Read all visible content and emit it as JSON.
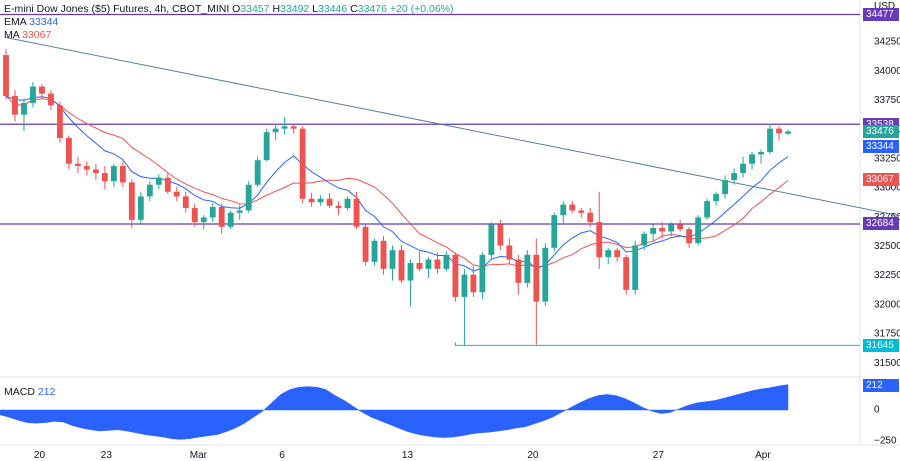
{
  "header": {
    "title": "E-mini Dow Jones ($5) Futures, 4h, CBOT_MINI",
    "o_label": "O",
    "o_value": "33457",
    "h_label": "H",
    "h_value": "33492",
    "l_label": "L",
    "l_value": "33446",
    "c_label": "C",
    "c_value": "33476",
    "change": "+20 (+0.06%)",
    "ema_label": "EMA",
    "ema_value": "33344",
    "ma_label": "MA",
    "ma_value": "33067"
  },
  "price_axis": {
    "currency": "USD",
    "ticks": [
      "34250",
      "34000",
      "33750",
      "33500",
      "33250",
      "33000",
      "32750",
      "32500",
      "32250",
      "32000",
      "31750",
      "31500"
    ]
  },
  "badges": [
    {
      "label": "34477",
      "value": 34477,
      "color": "#673ab7"
    },
    {
      "label": "33538",
      "value": 33538,
      "color": "#673ab7"
    },
    {
      "label": "33476",
      "value": 33476,
      "color": "#26a69a"
    },
    {
      "label": "33344",
      "value": 33344,
      "color": "#2962ff"
    },
    {
      "label": "33067",
      "value": 33067,
      "color": "#ef5350"
    },
    {
      "label": "32684",
      "value": 32684,
      "color": "#673ab7"
    },
    {
      "label": "31645",
      "value": 31645,
      "color": "#00bcd4"
    }
  ],
  "macd": {
    "label": "MACD",
    "value": "212",
    "badge": "212",
    "ticks": [
      "0",
      "−250"
    ]
  },
  "time_axis": {
    "labels": [
      "20",
      "23",
      "Mar",
      "6",
      "13",
      "20",
      "27",
      "Apr"
    ]
  },
  "colors": {
    "up": "#26a69a",
    "down": "#ef5350",
    "ema": "#2962ff",
    "ma": "#ef5350",
    "level": "#673ab7",
    "trend": "#5b7fa8",
    "support": "#00bcd4",
    "macd": "#2962ff"
  },
  "chart_data": {
    "type": "candlestick",
    "title": "E-mini Dow Jones ($5) Futures, 4h, CBOT_MINI",
    "ylim": [
      31400,
      34550
    ],
    "levels": [
      34477,
      33538,
      32684
    ],
    "support_level": 31645,
    "trendline": [
      [
        0,
        34280
      ],
      [
        118,
        32470
      ]
    ],
    "candles_ohlc": [
      [
        34130,
        34180,
        33750,
        33780
      ],
      [
        33780,
        33830,
        33560,
        33620
      ],
      [
        33620,
        33760,
        33480,
        33720
      ],
      [
        33720,
        33900,
        33680,
        33860
      ],
      [
        33860,
        33880,
        33760,
        33800
      ],
      [
        33800,
        33830,
        33660,
        33700
      ],
      [
        33700,
        33730,
        33380,
        33420
      ],
      [
        33420,
        33440,
        33150,
        33200
      ],
      [
        33200,
        33260,
        33120,
        33180
      ],
      [
        33180,
        33220,
        33100,
        33150
      ],
      [
        33150,
        33200,
        33060,
        33120
      ],
      [
        33120,
        33180,
        32980,
        33050
      ],
      [
        33050,
        33200,
        33000,
        33180
      ],
      [
        33180,
        33220,
        33000,
        33040
      ],
      [
        33040,
        33070,
        32650,
        32720
      ],
      [
        32720,
        32960,
        32680,
        32920
      ],
      [
        32920,
        33050,
        32880,
        33020
      ],
      [
        33020,
        33110,
        32980,
        33080
      ],
      [
        33080,
        33120,
        32940,
        32960
      ],
      [
        32960,
        33000,
        32880,
        32920
      ],
      [
        32920,
        32960,
        32780,
        32820
      ],
      [
        32820,
        32860,
        32660,
        32700
      ],
      [
        32700,
        32760,
        32640,
        32740
      ],
      [
        32740,
        32860,
        32700,
        32830
      ],
      [
        32830,
        32860,
        32600,
        32660
      ],
      [
        32660,
        32800,
        32640,
        32780
      ],
      [
        32780,
        32850,
        32720,
        32800
      ],
      [
        32800,
        33050,
        32780,
        33020
      ],
      [
        33020,
        33260,
        33000,
        33230
      ],
      [
        33230,
        33500,
        33220,
        33470
      ],
      [
        33470,
        33540,
        33400,
        33500
      ],
      [
        33500,
        33600,
        33450,
        33520
      ],
      [
        33520,
        33540,
        33460,
        33500
      ],
      [
        33500,
        33520,
        32860,
        32900
      ],
      [
        32900,
        32950,
        32830,
        32870
      ],
      [
        32870,
        32930,
        32840,
        32900
      ],
      [
        32900,
        32950,
        32820,
        32840
      ],
      [
        32840,
        32880,
        32760,
        32820
      ],
      [
        32820,
        32920,
        32800,
        32900
      ],
      [
        32900,
        32960,
        32640,
        32660
      ],
      [
        32660,
        32680,
        32330,
        32360
      ],
      [
        32360,
        32560,
        32330,
        32540
      ],
      [
        32540,
        32580,
        32250,
        32300
      ],
      [
        32300,
        32500,
        32200,
        32460
      ],
      [
        32460,
        32500,
        32180,
        32200
      ],
      [
        32200,
        32380,
        31980,
        32350
      ],
      [
        32350,
        32450,
        32280,
        32300
      ],
      [
        32300,
        32400,
        32220,
        32380
      ],
      [
        32380,
        32440,
        32260,
        32300
      ],
      [
        32300,
        32450,
        32280,
        32420
      ],
      [
        32420,
        32440,
        32020,
        32060
      ],
      [
        32060,
        32300,
        31645,
        32250
      ],
      [
        32250,
        32320,
        32060,
        32100
      ],
      [
        32100,
        32440,
        32040,
        32420
      ],
      [
        32420,
        32700,
        32380,
        32680
      ],
      [
        32680,
        32720,
        32460,
        32500
      ],
      [
        32500,
        32560,
        32340,
        32380
      ],
      [
        32380,
        32420,
        32080,
        32180
      ],
      [
        32180,
        32460,
        32140,
        32420
      ],
      [
        32420,
        32560,
        31650,
        32020
      ],
      [
        32020,
        32520,
        31980,
        32480
      ],
      [
        32480,
        32780,
        32450,
        32760
      ],
      [
        32760,
        32880,
        32680,
        32850
      ],
      [
        32850,
        32880,
        32780,
        32800
      ],
      [
        32800,
        32820,
        32740,
        32780
      ],
      [
        32780,
        32820,
        32660,
        32700
      ],
      [
        32700,
        32960,
        32300,
        32400
      ],
      [
        32400,
        32480,
        32340,
        32460
      ],
      [
        32460,
        32480,
        32360,
        32400
      ],
      [
        32400,
        32420,
        32080,
        32120
      ],
      [
        32120,
        32540,
        32080,
        32500
      ],
      [
        32500,
        32620,
        32460,
        32600
      ],
      [
        32600,
        32680,
        32540,
        32650
      ],
      [
        32650,
        32700,
        32560,
        32620
      ],
      [
        32620,
        32700,
        32580,
        32680
      ],
      [
        32680,
        32720,
        32620,
        32640
      ],
      [
        32640,
        32660,
        32480,
        32520
      ],
      [
        32520,
        32760,
        32500,
        32740
      ],
      [
        32740,
        32900,
        32720,
        32880
      ],
      [
        32880,
        32960,
        32840,
        32940
      ],
      [
        32940,
        33100,
        32900,
        33060
      ],
      [
        33060,
        33160,
        33020,
        33120
      ],
      [
        33120,
        33260,
        33080,
        33200
      ],
      [
        33200,
        33300,
        33150,
        33280
      ],
      [
        33280,
        33320,
        33200,
        33300
      ],
      [
        33300,
        33540,
        33280,
        33500
      ],
      [
        33500,
        33520,
        33400,
        33460
      ],
      [
        33457,
        33492,
        33446,
        33476
      ]
    ],
    "macd_values": [
      -40,
      -60,
      -85,
      -105,
      -110,
      -105,
      -95,
      -100,
      -130,
      -150,
      -165,
      -175,
      -170,
      -165,
      -175,
      -190,
      -205,
      -215,
      -225,
      -240,
      -245,
      -238,
      -225,
      -215,
      -205,
      -180,
      -150,
      -110,
      -60,
      -10,
      60,
      130,
      170,
      190,
      195,
      190,
      170,
      120,
      80,
      30,
      -20,
      -60,
      -90,
      -120,
      -150,
      -180,
      -200,
      -215,
      -225,
      -230,
      -225,
      -215,
      -200,
      -190,
      -185,
      -175,
      -165,
      -150,
      -140,
      -115,
      -90,
      -60,
      -20,
      20,
      60,
      95,
      120,
      130,
      120,
      95,
      60,
      20,
      -10,
      -30,
      -20,
      10,
      40,
      60,
      70,
      80,
      100,
      120,
      140,
      160,
      175,
      185,
      200,
      212
    ]
  }
}
